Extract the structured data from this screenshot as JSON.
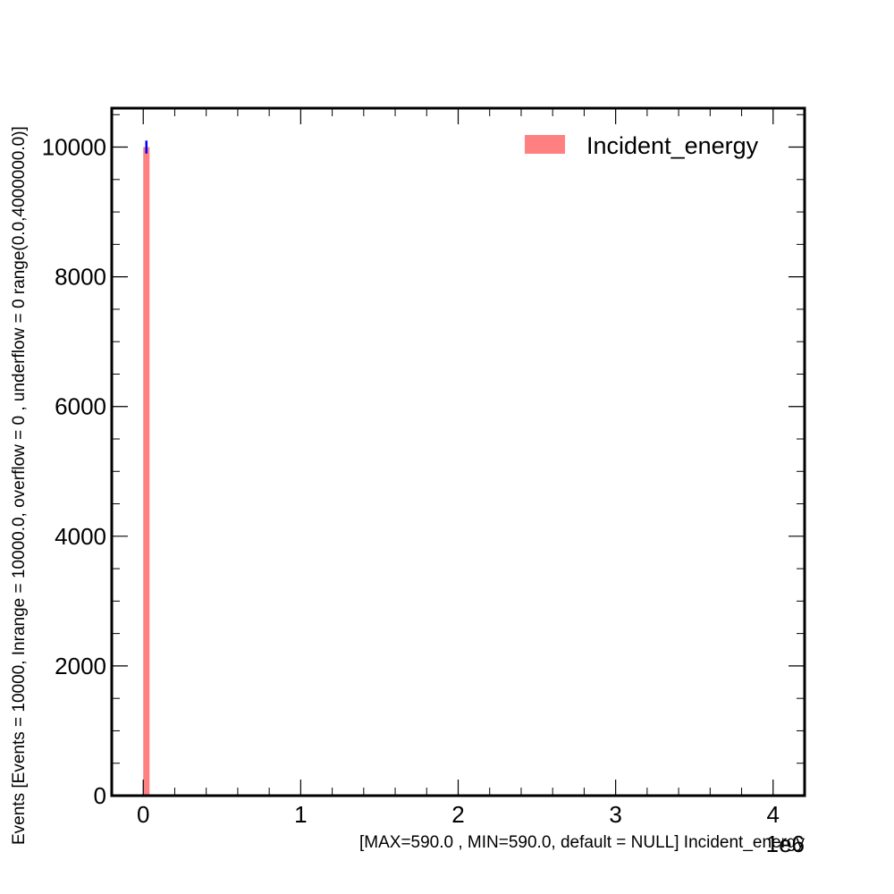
{
  "chart_data": {
    "type": "bar",
    "title": "",
    "xlabel": "[MAX=590.0 , MIN=590.0, default = NULL] Incident_energy",
    "ylabel": "Events [Events = 10000, Inrange = 10000.0, overflow = 0 , underflow = 0 range(0.0,4000000.0)]",
    "x_offset_label": "1e6",
    "xlim": [
      -0.2,
      4.2
    ],
    "ylim": [
      0,
      10600
    ],
    "x_ticks": [
      0,
      1,
      2,
      3,
      4
    ],
    "y_ticks": [
      0,
      2000,
      4000,
      6000,
      8000,
      10000
    ],
    "x_tick_labels": [
      "0",
      "1",
      "2",
      "3",
      "4"
    ],
    "y_tick_labels": [
      "0",
      "2000",
      "4000",
      "6000",
      "8000",
      "10000"
    ],
    "grid": false,
    "legend_position": "top-right",
    "series": [
      {
        "name": "Incident_energy",
        "color": "#ff8080",
        "bins": [
          {
            "x_low": 0.0,
            "x_high": 0.04,
            "value": 10000,
            "error": 100
          }
        ]
      }
    ],
    "error_color": "#0000ff"
  }
}
